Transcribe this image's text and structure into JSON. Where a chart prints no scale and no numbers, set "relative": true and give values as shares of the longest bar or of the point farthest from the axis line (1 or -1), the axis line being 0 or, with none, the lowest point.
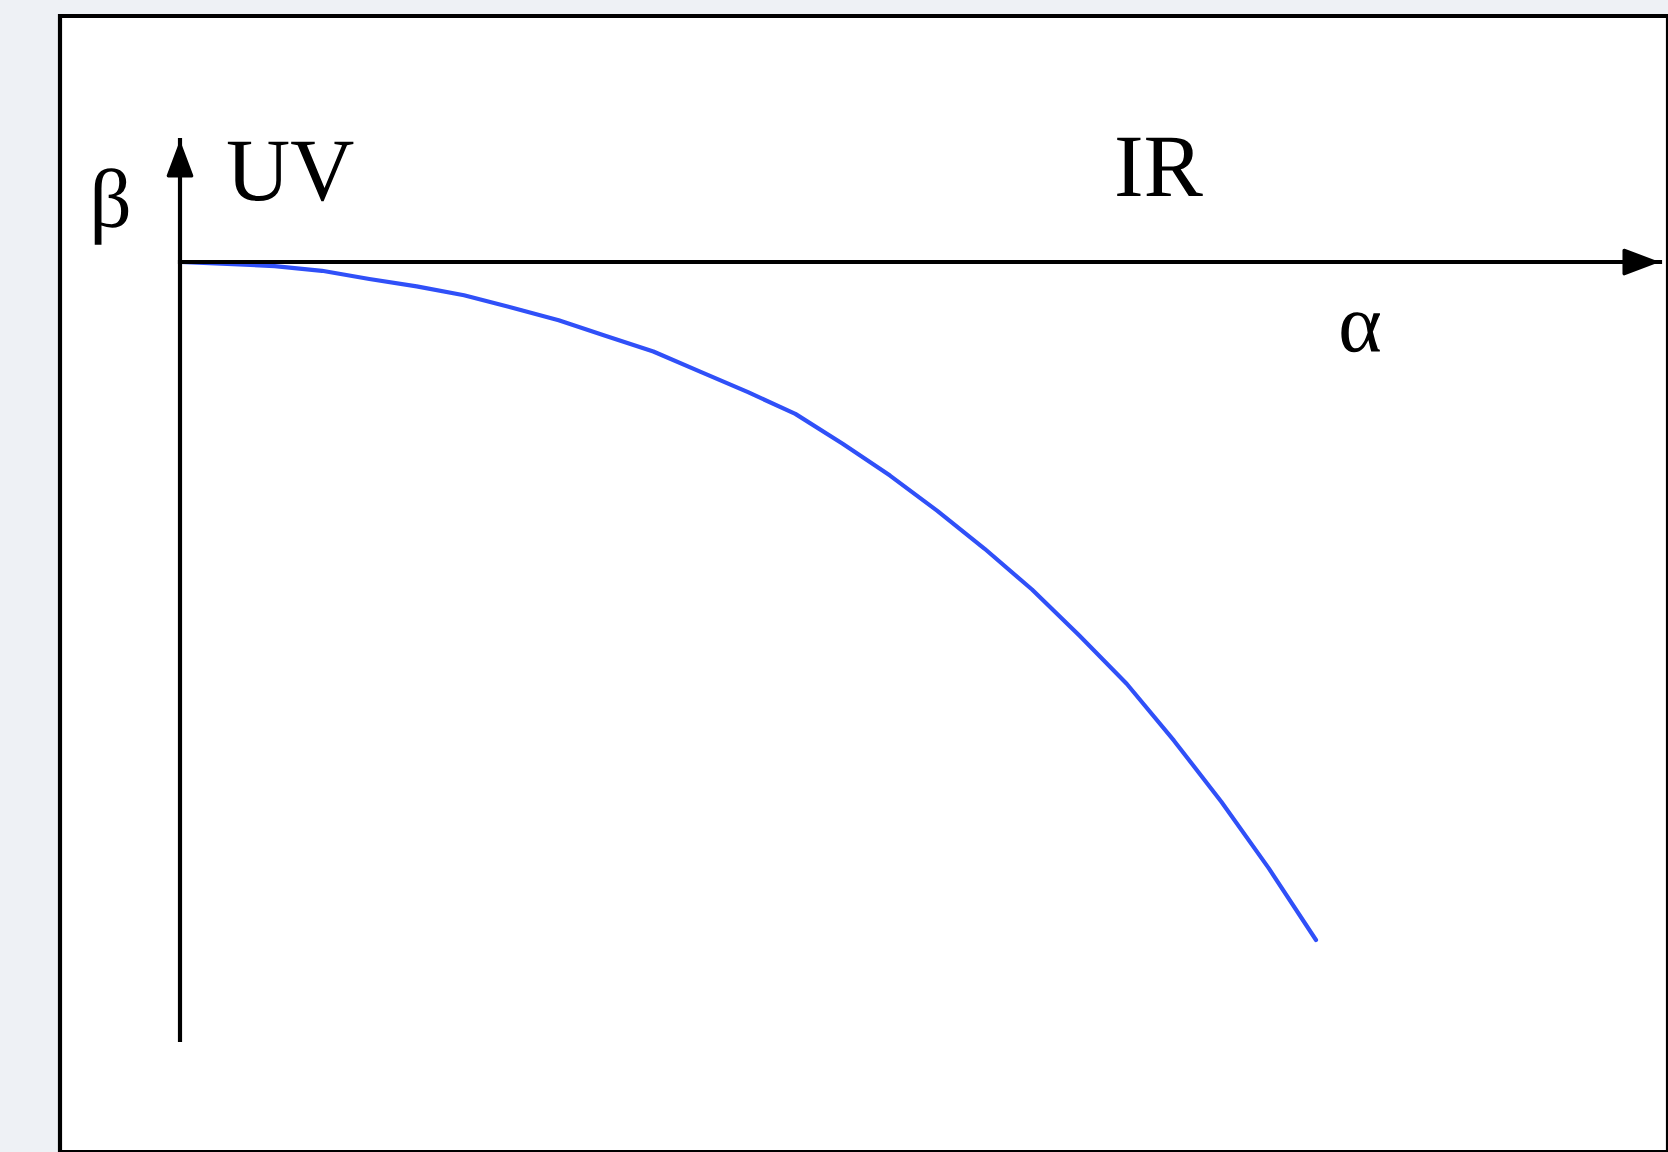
{
  "chart_data": {
    "type": "line",
    "xlabel": "α",
    "ylabel": "β",
    "annotations": [
      "UV",
      "IR"
    ],
    "categories": [
      null,
      null,
      null,
      null,
      null,
      null,
      null,
      null,
      null,
      null,
      null,
      null,
      null,
      null,
      null,
      null,
      null,
      null,
      null,
      null,
      null,
      null,
      null,
      null,
      null
    ],
    "series": [
      {
        "color": "#3050f8",
        "values": [
          0,
          -0.003,
          -0.006,
          -0.013,
          -0.025,
          -0.036,
          -0.049,
          -0.067,
          -0.086,
          -0.109,
          -0.132,
          -0.162,
          -0.192,
          -0.224,
          -0.268,
          -0.315,
          -0.367,
          -0.423,
          -0.483,
          -0.551,
          -0.622,
          -0.706,
          -0.796,
          -0.894,
          -1
        ]
      }
    ],
    "relative": true
  }
}
